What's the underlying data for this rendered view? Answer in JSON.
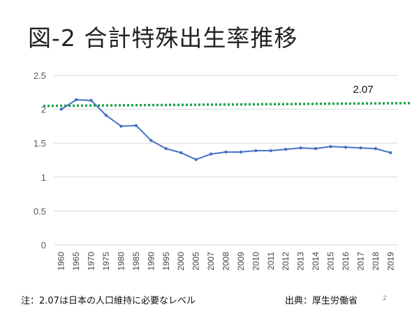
{
  "title": "図-2 合計特殊出生率推移",
  "chart_data": {
    "type": "line",
    "title": "図-2 合計特殊出生率推移",
    "categories": [
      "1960",
      "1965",
      "1970",
      "1975",
      "1980",
      "1985",
      "1990",
      "1995",
      "2000",
      "2005",
      "2007",
      "2008",
      "2009",
      "2010",
      "2011",
      "2012",
      "2013",
      "2014",
      "2015",
      "2016",
      "2017",
      "2018",
      "2019"
    ],
    "series": [
      {
        "name": "合計特殊出生率",
        "color": "#4472c4",
        "values": [
          2.0,
          2.14,
          2.13,
          1.91,
          1.75,
          1.76,
          1.54,
          1.42,
          1.36,
          1.26,
          1.34,
          1.37,
          1.37,
          1.39,
          1.39,
          1.41,
          1.43,
          1.42,
          1.45,
          1.44,
          1.43,
          1.42,
          1.36
        ]
      }
    ],
    "reference_line": {
      "value": 2.07,
      "label": "2.07",
      "color": "#1aa34a"
    },
    "yticks": [
      "0",
      "0.5",
      "1",
      "1.5",
      "2",
      "2.5"
    ],
    "ylim": [
      0,
      2.5
    ],
    "grid": true
  },
  "footer": {
    "note": "注：2.07は日本の人口維持に必要なレベル",
    "source": "出典：厚生労働省",
    "page": "2"
  }
}
